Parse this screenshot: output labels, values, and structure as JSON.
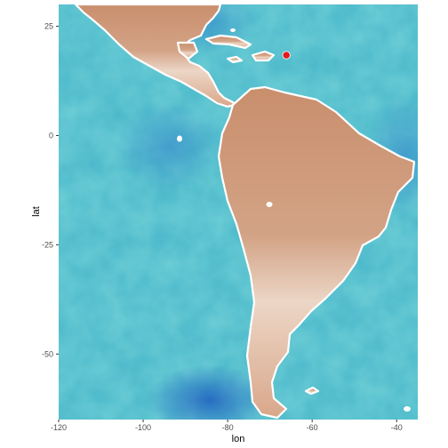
{
  "chart_data": {
    "type": "map",
    "basemap": "watercolor",
    "xlabel": "lon",
    "ylabel": "lat",
    "xlim": [
      -120,
      -35
    ],
    "ylim": [
      -65,
      30
    ],
    "x_ticks": [
      -120,
      -100,
      -80,
      -60,
      -40
    ],
    "y_ticks": [
      25,
      0,
      -25,
      -50
    ],
    "x_tick_labels": [
      "-120",
      "-100",
      "-80",
      "-60",
      "-40"
    ],
    "y_tick_labels": [
      "25",
      "0",
      "-25",
      "-50"
    ],
    "points": [
      {
        "lon": -66.1,
        "lat": 18.4,
        "color": "#e41a1c"
      }
    ],
    "colors": {
      "ocean": "#6fcfd6",
      "ocean_deep": "#2e86c8",
      "land": "#cf9a7c",
      "land_light": "#ebcab4",
      "coast": "#ffffff",
      "point": "#e41a1c"
    }
  }
}
